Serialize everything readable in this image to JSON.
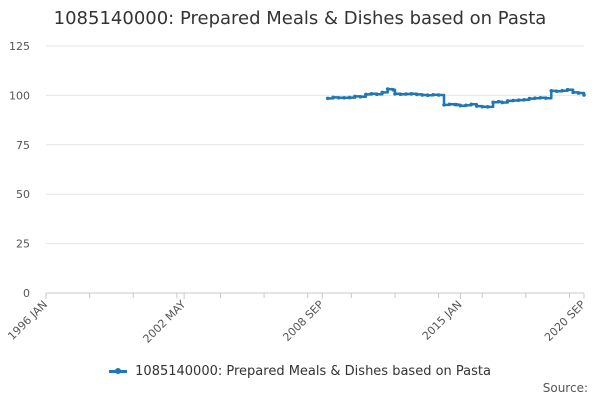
{
  "chart_data": {
    "type": "line",
    "title": "1085140000: Prepared Meals & Dishes based on Pasta",
    "xlabel": "",
    "ylabel": "",
    "ylim": [
      0,
      125
    ],
    "yticks": [
      0,
      25,
      50,
      75,
      100,
      125
    ],
    "xlim": [
      "1996-01",
      "2020-09"
    ],
    "xticks": [
      "1996 JAN",
      "2002 MAY",
      "2008 SEP",
      "2015 JAN",
      "2020 SEP"
    ],
    "grid": true,
    "legend_position": "bottom-center",
    "series": [
      {
        "name": "1085140000: Prepared Meals & Dishes based on Pasta",
        "color": "#1f77b4",
        "x": [
          "2008-12",
          "2009-03",
          "2009-06",
          "2009-09",
          "2009-12",
          "2010-03",
          "2010-06",
          "2010-09",
          "2010-12",
          "2011-03",
          "2011-06",
          "2011-09",
          "2011-12",
          "2012-01",
          "2012-04",
          "2012-07",
          "2012-10",
          "2013-01",
          "2013-04",
          "2013-07",
          "2013-10",
          "2014-01",
          "2014-04",
          "2014-07",
          "2014-10",
          "2014-11",
          "2015-01",
          "2015-04",
          "2015-07",
          "2015-10",
          "2016-01",
          "2016-04",
          "2016-07",
          "2016-10",
          "2016-12",
          "2017-03",
          "2017-06",
          "2017-09",
          "2017-12",
          "2018-03",
          "2018-06",
          "2018-09",
          "2018-12",
          "2019-03",
          "2019-06",
          "2019-09",
          "2019-12",
          "2020-03",
          "2020-06",
          "2020-09"
        ],
        "values": [
          98.5,
          99,
          98.8,
          98.8,
          98.9,
          99.5,
          99.3,
          100.5,
          100.8,
          100.6,
          101.5,
          103.2,
          102.8,
          100.8,
          100.6,
          100.7,
          100.8,
          100.5,
          100.2,
          100.1,
          100.3,
          100.2,
          95.2,
          95.5,
          95.4,
          95.3,
          94.8,
          95,
          95.5,
          94.6,
          94.3,
          94.2,
          96.5,
          96.8,
          96.4,
          97.2,
          97.4,
          97.6,
          97.8,
          98.4,
          98.6,
          98.8,
          98.6,
          102.3,
          102.1,
          102.4,
          102.9,
          101.5,
          101.2,
          100.2
        ]
      }
    ]
  },
  "legend": {
    "label": "1085140000: Prepared Meals & Dishes based on Pasta"
  },
  "source_label": "Source:"
}
